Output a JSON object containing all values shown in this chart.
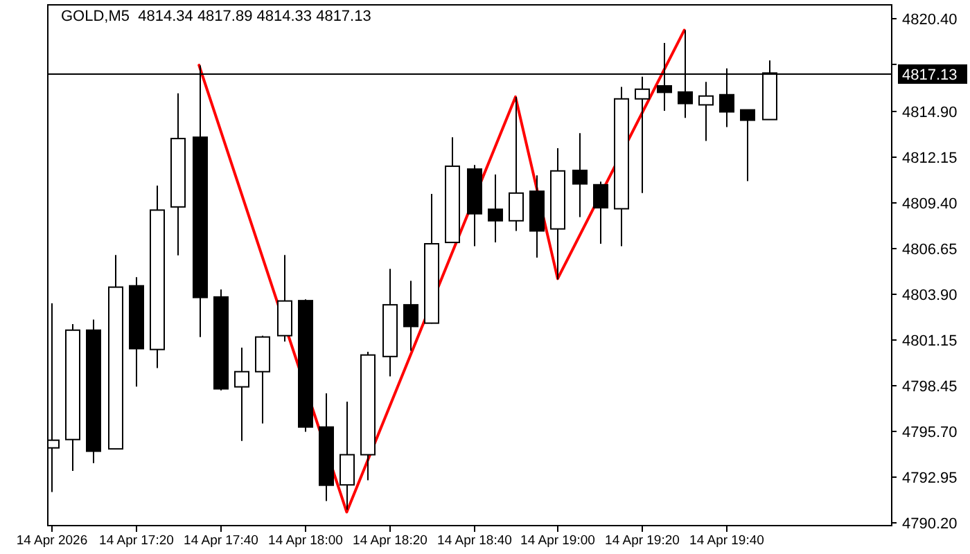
{
  "chart_data": {
    "type": "candlestick",
    "title": "GOLD,M5  4814.34 4817.89 4814.33 4817.13",
    "xlim": [
      "2026-04-14T16:59",
      "2026-04-14T20:19"
    ],
    "xticks": [
      {
        "value": "2026-04-14T17:00",
        "label": "14 Apr 2026"
      },
      {
        "value": "2026-04-14T17:20",
        "label": "14 Apr 17:20"
      },
      {
        "value": "2026-04-14T17:40",
        "label": "14 Apr 17:40"
      },
      {
        "value": "2026-04-14T18:00",
        "label": "14 Apr 18:00"
      },
      {
        "value": "2026-04-14T18:20",
        "label": "14 Apr 18:20"
      },
      {
        "value": "2026-04-14T18:40",
        "label": "14 Apr 18:40"
      },
      {
        "value": "2026-04-14T19:00",
        "label": "14 Apr 19:00"
      },
      {
        "value": "2026-04-14T19:20",
        "label": "14 Apr 19:20"
      },
      {
        "value": "2026-04-14T19:40",
        "label": "14 Apr 19:40"
      }
    ],
    "ylim": [
      4790.03,
      4821.26
    ],
    "yticks": [
      {
        "value": 4820.4,
        "label": "4820.40"
      },
      {
        "value": 4817.65,
        "label": null
      },
      {
        "value": 4814.9,
        "label": "4814.90"
      },
      4812.15,
      {
        "value": 4809.4,
        "label": "4809.40"
      },
      4806.65,
      {
        "value": 4803.9,
        "label": "4803.90"
      },
      4801.15,
      4798.45,
      {
        "value": 4795.7,
        "label": "4795.70"
      },
      4792.95,
      {
        "value": 4790.2,
        "label": "4790.20"
      }
    ],
    "ref_lines": [
      {
        "axis": "y",
        "value": 4817.13,
        "label": "4817.13",
        "color": "#000000"
      }
    ],
    "series": [
      {
        "type": "candlestick",
        "color": "#000000",
        "x": [
          "2026-04-14T17:00",
          "2026-04-14T17:05",
          "2026-04-14T17:10",
          "2026-04-14T17:15",
          "2026-04-14T17:20",
          "2026-04-14T17:25",
          "2026-04-14T17:30",
          "2026-04-14T17:35",
          "2026-04-14T17:40",
          "2026-04-14T17:45",
          "2026-04-14T17:50",
          "2026-04-14T17:55",
          "2026-04-14T18:00",
          "2026-04-14T18:05",
          "2026-04-14T18:10",
          "2026-04-14T18:15",
          "2026-04-14T18:20",
          "2026-04-14T18:25",
          "2026-04-14T18:30",
          "2026-04-14T18:35",
          "2026-04-14T18:40",
          "2026-04-14T18:45",
          "2026-04-14T18:50",
          "2026-04-14T18:55",
          "2026-04-14T19:00",
          "2026-04-14T19:05",
          "2026-04-14T19:10",
          "2026-04-14T19:15",
          "2026-04-14T19:20",
          "2026-04-14T19:25",
          "2026-04-14T19:30",
          "2026-04-14T19:35",
          "2026-04-14T19:40",
          "2026-04-14T19:45",
          "2026-04-14T19:50"
        ],
        "ohlc": [
          [
            4794.65,
            4803.32,
            4792.0,
            4795.11
          ],
          [
            4795.15,
            4802.07,
            4793.27,
            4801.71
          ],
          [
            4801.71,
            4802.34,
            4793.74,
            4794.45
          ],
          [
            4794.59,
            4806.22,
            4794.59,
            4804.29
          ],
          [
            4804.37,
            4804.89,
            4798.33,
            4800.6
          ],
          [
            4800.55,
            4810.38,
            4799.44,
            4808.91
          ],
          [
            4809.1,
            4815.91,
            4806.2,
            4813.2
          ],
          [
            4813.28,
            4817.58,
            4801.3,
            4803.67
          ],
          [
            4803.7,
            4804.15,
            4798.1,
            4798.19
          ],
          [
            4798.31,
            4800.66,
            4795.07,
            4799.22
          ],
          [
            4799.22,
            4801.38,
            4796.11,
            4801.3
          ],
          [
            4801.38,
            4806.22,
            4801.02,
            4803.46
          ],
          [
            4803.48,
            4803.56,
            4795.62,
            4795.9
          ],
          [
            4795.9,
            4797.92,
            4791.46,
            4792.41
          ],
          [
            4792.43,
            4797.42,
            4790.94,
            4794.24
          ],
          [
            4794.24,
            4800.41,
            4792.71,
            4800.22
          ],
          [
            4800.13,
            4805.39,
            4798.94,
            4803.23
          ],
          [
            4803.23,
            4804.67,
            4800.47,
            4801.93
          ],
          [
            4802.13,
            4809.88,
            4802.1,
            4806.89
          ],
          [
            4806.97,
            4813.28,
            4806.97,
            4811.54
          ],
          [
            4811.37,
            4811.62,
            4806.75,
            4808.69
          ],
          [
            4808.96,
            4811.04,
            4806.97,
            4808.27
          ],
          [
            4808.27,
            4815.69,
            4807.66,
            4809.93
          ],
          [
            4810.04,
            4810.99,
            4806.06,
            4807.66
          ],
          [
            4807.78,
            4812.62,
            4804.75,
            4811.26
          ],
          [
            4811.29,
            4813.53,
            4808.49,
            4810.48
          ],
          [
            4810.43,
            4810.62,
            4806.89,
            4809.05
          ],
          [
            4808.99,
            4816.3,
            4806.75,
            4815.58
          ],
          [
            4815.58,
            4816.91,
            4809.93,
            4816.16
          ],
          [
            4816.36,
            4818.93,
            4814.86,
            4815.97
          ],
          [
            4815.99,
            4819.7,
            4814.44,
            4815.3
          ],
          [
            4815.22,
            4816.6,
            4813.06,
            4815.75
          ],
          [
            4815.83,
            4817.41,
            4813.89,
            4814.8
          ],
          [
            4814.92,
            4814.92,
            4810.65,
            4814.3
          ],
          [
            4814.34,
            4817.89,
            4814.33,
            4817.13
          ]
        ]
      },
      {
        "type": "line",
        "color": "#ff0000",
        "x": [
          "2026-04-14T17:35",
          "2026-04-14T18:10",
          "2026-04-14T18:50",
          "2026-04-14T19:00",
          "2026-04-14T19:30"
        ],
        "values": [
          4817.6,
          4790.8,
          4815.7,
          4804.8,
          4819.7
        ]
      }
    ]
  }
}
